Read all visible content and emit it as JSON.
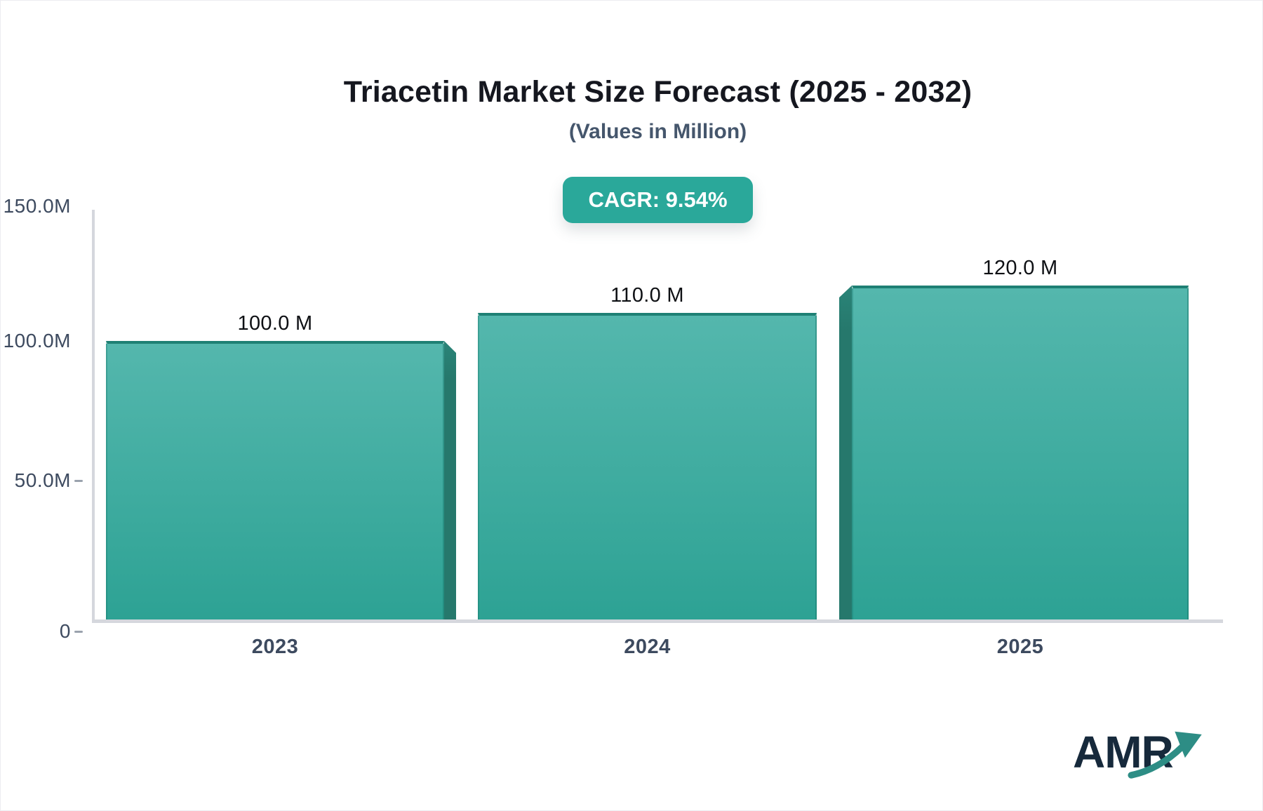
{
  "header": {
    "title": "Triacetin Market Size Forecast (2025 - 2032)",
    "subtitle": "(Values in Million)",
    "cagr_badge": "CAGR: 9.54%"
  },
  "chart_data": {
    "type": "bar",
    "title": "Triacetin Market Size Forecast (2025 - 2032)",
    "subtitle": "(Values in Million)",
    "cagr_percent": "9.54%",
    "unit": "Million (M)",
    "categories": [
      "2023",
      "2024",
      "2025"
    ],
    "values": [
      100.0,
      110.0,
      120.0
    ],
    "bar_labels": [
      "100.0 M",
      "110.0 M",
      "120.0 M"
    ],
    "ylim": [
      0,
      150
    ],
    "y_axis_ticks": [
      {
        "label": "150.0M",
        "value": 150,
        "dash": false
      },
      {
        "label": "100.0M",
        "value": 100,
        "dash": false
      },
      {
        "label": "50.0M",
        "value": 50,
        "dash": true
      },
      {
        "label": "0",
        "value": 0,
        "dash": true
      }
    ],
    "grid": false,
    "legend": false,
    "bar_style": "3d teal gradient, perspective toward center"
  },
  "colors": {
    "bar_gradient_top": "#54b7ad",
    "bar_gradient_bottom": "#2da294",
    "bar_cap": "#1e8074",
    "bar_side_3d": "#26786c",
    "badge_background": "#2aa89a",
    "badge_text": "#ffffff",
    "axis_line": "#d5d7dd",
    "tick_dash": "#9aa2ad",
    "title_text": "#15171f",
    "subtitle_text": "#45566c",
    "axis_label_text": "#3d4a5f",
    "value_label_text": "#0e1014",
    "logo_text": "#16293b",
    "logo_arrow": "#2d8d85"
  },
  "logo": {
    "text": "AMR",
    "arrow_icon": "trending-up-arrow"
  }
}
